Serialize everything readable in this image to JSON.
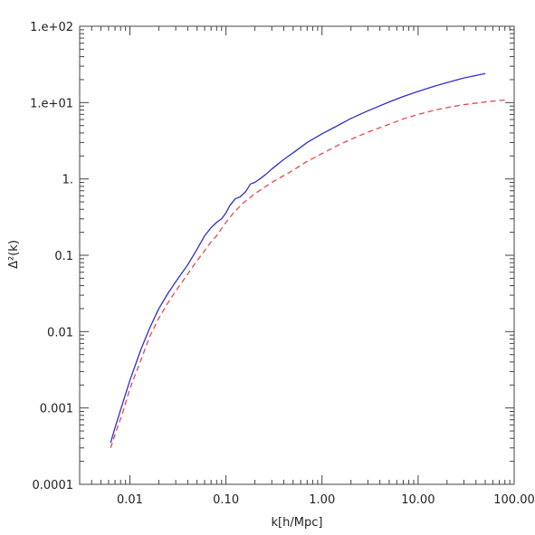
{
  "chart_data": {
    "type": "line",
    "title": "",
    "xlabel": "k[h/Mpc]",
    "ylabel": "Δ²(k)",
    "xscale": "log",
    "yscale": "log",
    "xlim": [
      0.003,
      100
    ],
    "ylim": [
      0.0001,
      100
    ],
    "grid": false,
    "x_tick_labels": [
      "0.01",
      "0.10",
      "1.00",
      "10.00",
      "100.00"
    ],
    "x_tick_values": [
      0.01,
      0.1,
      1,
      10,
      100
    ],
    "y_tick_labels": [
      "0.0001",
      "0.001",
      "0.01",
      "0.1",
      "1.",
      "1.e+01",
      "1.e+02"
    ],
    "y_tick_values": [
      0.0001,
      0.001,
      0.01,
      0.1,
      1,
      10,
      100
    ],
    "series": [
      {
        "color": "#2f2fcf",
        "style": "solid",
        "x": [
          0.0063,
          0.007,
          0.0085,
          0.01,
          0.013,
          0.016,
          0.02,
          0.025,
          0.03,
          0.04,
          0.05,
          0.06,
          0.07,
          0.08,
          0.09,
          0.1,
          0.11,
          0.125,
          0.14,
          0.16,
          0.18,
          0.2,
          0.23,
          0.26,
          0.3,
          0.4,
          0.5,
          0.7,
          1,
          1.5,
          2,
          3,
          5,
          7,
          10,
          15,
          20,
          30,
          50
        ],
        "y": [
          0.00035,
          0.00055,
          0.0012,
          0.0023,
          0.0058,
          0.011,
          0.02,
          0.032,
          0.045,
          0.075,
          0.12,
          0.18,
          0.23,
          0.27,
          0.3,
          0.36,
          0.45,
          0.55,
          0.58,
          0.68,
          0.86,
          0.9,
          1.02,
          1.15,
          1.35,
          1.8,
          2.2,
          3.0,
          3.9,
          5.1,
          6.2,
          7.8,
          10.2,
          12.0,
          14.0,
          16.5,
          18.3,
          21,
          24
        ]
      },
      {
        "color": "#e8474a",
        "style": "dashed",
        "x": [
          0.0063,
          0.007,
          0.0085,
          0.01,
          0.013,
          0.016,
          0.02,
          0.025,
          0.03,
          0.04,
          0.05,
          0.06,
          0.07,
          0.08,
          0.1,
          0.12,
          0.15,
          0.2,
          0.3,
          0.5,
          0.7,
          1,
          1.5,
          2,
          3,
          5,
          7,
          10,
          15,
          20,
          30,
          50,
          80
        ],
        "y": [
          0.0003,
          0.00045,
          0.0009,
          0.0018,
          0.0042,
          0.0085,
          0.015,
          0.024,
          0.034,
          0.057,
          0.085,
          0.115,
          0.15,
          0.18,
          0.27,
          0.36,
          0.48,
          0.64,
          0.9,
          1.3,
          1.7,
          2.15,
          2.8,
          3.3,
          4.1,
          5.2,
          6.1,
          7.0,
          8.0,
          8.6,
          9.4,
          10.2,
          10.8
        ]
      }
    ]
  }
}
